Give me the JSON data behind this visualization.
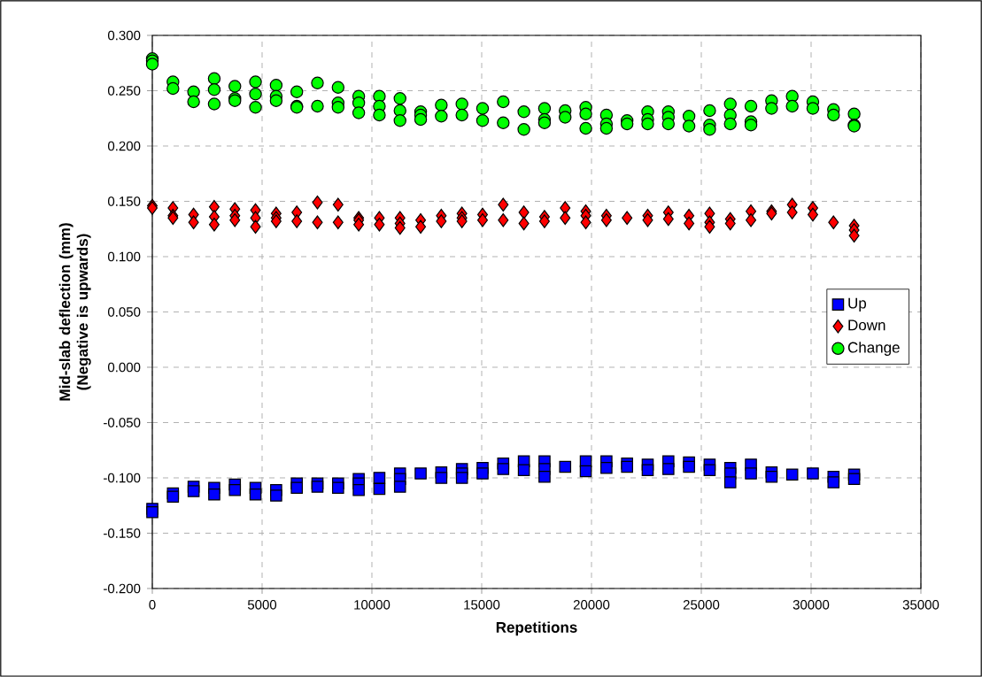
{
  "chart_data": {
    "type": "scatter",
    "xlabel": "Repetitions",
    "ylabel": "Mid-slab deflection (mm) (Negative is upwards)",
    "xlim": [
      0,
      35000
    ],
    "ylim": [
      -0.2,
      0.3
    ],
    "xticks": [
      0,
      5000,
      10000,
      15000,
      20000,
      25000,
      30000,
      35000
    ],
    "yticks": [
      {
        "value": -0.2,
        "label": "-0.200"
      },
      {
        "value": -0.15,
        "label": "-0.150"
      },
      {
        "value": -0.1,
        "label": "-0.100"
      },
      {
        "value": -0.05,
        "label": "-0.050"
      },
      {
        "value": 0,
        "label": "0.000"
      },
      {
        "value": 0.05,
        "label": "0.050"
      },
      {
        "value": 0.1,
        "label": "0.100"
      },
      {
        "value": 0.15,
        "label": "0.150"
      },
      {
        "value": 0.2,
        "label": "0.200"
      },
      {
        "value": 0.25,
        "label": "0.250"
      },
      {
        "value": 0.3,
        "label": "0.300"
      }
    ],
    "grid": true,
    "legend": "right",
    "series": [
      {
        "name": "Up",
        "color": "#0000ff",
        "marker": "square",
        "x": [
          0,
          0,
          940,
          940,
          1880,
          1880,
          2820,
          2820,
          3760,
          3760,
          4700,
          4700,
          5640,
          5640,
          6580,
          6580,
          7520,
          7520,
          8460,
          8460,
          9400,
          9400,
          9400,
          10340,
          10340,
          11280,
          11280,
          11280,
          12220,
          13160,
          13160,
          14100,
          14100,
          14100,
          15040,
          15040,
          15980,
          15980,
          16920,
          16920,
          17860,
          17860,
          17860,
          18800,
          19740,
          19740,
          20680,
          20680,
          21620,
          21620,
          22560,
          22560,
          23500,
          23500,
          24440,
          24440,
          25380,
          25380,
          26320,
          26320,
          26320,
          27260,
          27260,
          28200,
          28200,
          29140,
          30080,
          31020,
          31020,
          31960,
          31960
        ],
        "values": [
          -0.128,
          -0.131,
          -0.114,
          -0.117,
          -0.108,
          -0.112,
          -0.109,
          -0.115,
          -0.106,
          -0.111,
          -0.109,
          -0.115,
          -0.111,
          -0.116,
          -0.105,
          -0.109,
          -0.105,
          -0.108,
          -0.105,
          -0.109,
          -0.101,
          -0.105,
          -0.111,
          -0.1,
          -0.11,
          -0.096,
          -0.101,
          -0.108,
          -0.096,
          -0.095,
          -0.1,
          -0.092,
          -0.096,
          -0.1,
          -0.091,
          -0.096,
          -0.087,
          -0.092,
          -0.085,
          -0.093,
          -0.085,
          -0.092,
          -0.099,
          -0.09,
          -0.085,
          -0.094,
          -0.085,
          -0.091,
          -0.087,
          -0.09,
          -0.088,
          -0.093,
          -0.085,
          -0.092,
          -0.086,
          -0.09,
          -0.088,
          -0.093,
          -0.091,
          -0.096,
          -0.104,
          -0.088,
          -0.096,
          -0.095,
          -0.099,
          -0.097,
          -0.096,
          -0.099,
          -0.104,
          -0.097,
          -0.101
        ]
      },
      {
        "name": "Down",
        "color": "#ff0000",
        "marker": "diamond",
        "x": [
          0,
          0,
          940,
          940,
          940,
          1880,
          1880,
          2820,
          2820,
          2820,
          3760,
          3760,
          3760,
          4700,
          4700,
          4700,
          5640,
          5640,
          5640,
          6580,
          6580,
          7520,
          7520,
          8460,
          8460,
          9400,
          9400,
          9400,
          10340,
          10340,
          11280,
          11280,
          11280,
          12220,
          12220,
          13160,
          13160,
          14100,
          14100,
          14100,
          15040,
          15040,
          15980,
          15980,
          16920,
          16920,
          17860,
          17860,
          18800,
          18800,
          19740,
          19740,
          19740,
          20680,
          20680,
          21620,
          22560,
          22560,
          23500,
          23500,
          24440,
          24440,
          25380,
          25380,
          25380,
          26320,
          26320,
          27260,
          27260,
          28200,
          28200,
          29140,
          29140,
          30080,
          30080,
          31020,
          31960,
          31960,
          31960
        ],
        "values": [
          0.146,
          0.144,
          0.144,
          0.137,
          0.135,
          0.138,
          0.131,
          0.145,
          0.136,
          0.129,
          0.143,
          0.137,
          0.133,
          0.142,
          0.135,
          0.127,
          0.139,
          0.135,
          0.132,
          0.14,
          0.132,
          0.149,
          0.131,
          0.147,
          0.131,
          0.135,
          0.133,
          0.129,
          0.135,
          0.129,
          0.135,
          0.13,
          0.126,
          0.133,
          0.127,
          0.137,
          0.132,
          0.139,
          0.135,
          0.132,
          0.138,
          0.133,
          0.147,
          0.133,
          0.14,
          0.13,
          0.136,
          0.132,
          0.144,
          0.135,
          0.141,
          0.137,
          0.131,
          0.137,
          0.133,
          0.135,
          0.137,
          0.133,
          0.14,
          0.134,
          0.137,
          0.13,
          0.139,
          0.131,
          0.127,
          0.134,
          0.13,
          0.141,
          0.133,
          0.141,
          0.139,
          0.147,
          0.14,
          0.144,
          0.138,
          0.131,
          0.128,
          0.124,
          0.119
        ]
      },
      {
        "name": "Change",
        "color": "#00ff00",
        "marker": "circle",
        "x": [
          0,
          0,
          0,
          940,
          940,
          1880,
          1880,
          2820,
          2820,
          2820,
          3760,
          3760,
          3760,
          4700,
          4700,
          4700,
          5640,
          5640,
          5640,
          6580,
          6580,
          6580,
          7520,
          7520,
          8460,
          8460,
          8460,
          9400,
          9400,
          9400,
          10340,
          10340,
          10340,
          11280,
          11280,
          11280,
          12220,
          12220,
          12220,
          13160,
          13160,
          14100,
          14100,
          15040,
          15040,
          15980,
          15980,
          16920,
          16920,
          17860,
          17860,
          17860,
          18800,
          18800,
          19740,
          19740,
          19740,
          20680,
          20680,
          20680,
          21620,
          21620,
          22560,
          22560,
          22560,
          23500,
          23500,
          23500,
          24440,
          24440,
          25380,
          25380,
          25380,
          26320,
          26320,
          26320,
          27260,
          27260,
          27260,
          28200,
          28200,
          29140,
          29140,
          30080,
          30080,
          31020,
          31020,
          31960,
          31960,
          31960
        ],
        "values": [
          0.279,
          0.277,
          0.274,
          0.258,
          0.252,
          0.249,
          0.24,
          0.261,
          0.251,
          0.238,
          0.254,
          0.243,
          0.241,
          0.258,
          0.247,
          0.235,
          0.255,
          0.245,
          0.241,
          0.249,
          0.236,
          0.235,
          0.257,
          0.236,
          0.253,
          0.239,
          0.235,
          0.245,
          0.239,
          0.23,
          0.245,
          0.236,
          0.228,
          0.243,
          0.232,
          0.223,
          0.231,
          0.228,
          0.224,
          0.237,
          0.227,
          0.238,
          0.228,
          0.234,
          0.223,
          0.24,
          0.221,
          0.231,
          0.215,
          0.234,
          0.224,
          0.221,
          0.232,
          0.226,
          0.235,
          0.229,
          0.216,
          0.228,
          0.22,
          0.216,
          0.223,
          0.22,
          0.231,
          0.224,
          0.22,
          0.231,
          0.226,
          0.22,
          0.227,
          0.218,
          0.232,
          0.219,
          0.215,
          0.238,
          0.228,
          0.22,
          0.236,
          0.222,
          0.219,
          0.241,
          0.234,
          0.245,
          0.236,
          0.24,
          0.234,
          0.233,
          0.228,
          0.229,
          0.219,
          0.218
        ]
      }
    ]
  }
}
